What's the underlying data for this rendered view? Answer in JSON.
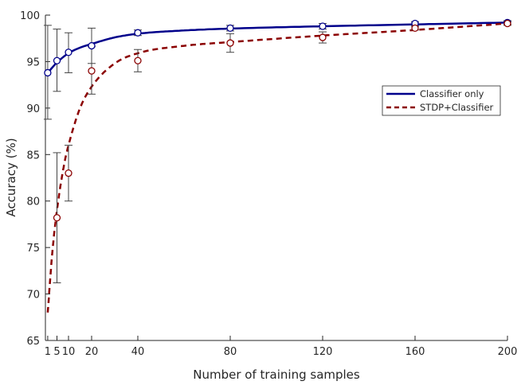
{
  "chart_data": {
    "type": "line",
    "title": "",
    "xlabel": "Number of training samples",
    "ylabel": "Accuracy (%)",
    "xlim": [
      0,
      200
    ],
    "ylim": [
      65,
      100
    ],
    "xticks": [
      1,
      5,
      10,
      20,
      40,
      80,
      120,
      160,
      200
    ],
    "yticks": [
      65,
      70,
      75,
      80,
      85,
      90,
      95,
      100
    ],
    "grid": false,
    "legend_position": "right",
    "series": [
      {
        "name": "Classifier only",
        "color": "#00008b",
        "line_style": "solid",
        "x": [
          1,
          5,
          10,
          20,
          40,
          80,
          120,
          160,
          200
        ],
        "y": [
          93.8,
          95.1,
          96.0,
          96.7,
          98.1,
          98.6,
          98.8,
          99.1,
          99.2
        ],
        "err_low": [
          88.8,
          91.8,
          93.8,
          94.8,
          97.8,
          98.3,
          98.5,
          98.9,
          99.0
        ],
        "err_high": [
          98.9,
          98.5,
          98.1,
          98.6,
          98.4,
          98.9,
          99.1,
          99.3,
          99.4
        ],
        "curve_x": [
          1,
          5,
          10,
          15,
          20,
          30,
          40,
          60,
          80,
          120,
          160,
          200
        ],
        "curve_y": [
          93.8,
          94.9,
          95.9,
          96.5,
          96.9,
          97.6,
          98.0,
          98.35,
          98.55,
          98.8,
          99.0,
          99.2
        ]
      },
      {
        "name": "STDP+Classifier",
        "color": "#8b0000",
        "line_style": "dashed",
        "x": [
          5,
          10,
          20,
          40,
          80,
          120,
          160,
          200
        ],
        "y": [
          78.2,
          83.0,
          94.0,
          95.1,
          97.0,
          97.6,
          98.6,
          99.1
        ],
        "err_low": [
          71.2,
          80.0,
          91.5,
          93.9,
          96.0,
          97.0,
          98.4,
          98.9
        ],
        "err_high": [
          85.2,
          86.0,
          96.6,
          96.3,
          98.0,
          98.2,
          98.8,
          99.3
        ],
        "curve_x": [
          1,
          3,
          5,
          8,
          10,
          15,
          20,
          30,
          40,
          60,
          80,
          120,
          160,
          200
        ],
        "curve_y": [
          68.0,
          74.5,
          79.0,
          83.8,
          86.0,
          90.0,
          92.3,
          94.8,
          95.9,
          96.7,
          97.1,
          97.8,
          98.4,
          99.1
        ]
      }
    ]
  }
}
